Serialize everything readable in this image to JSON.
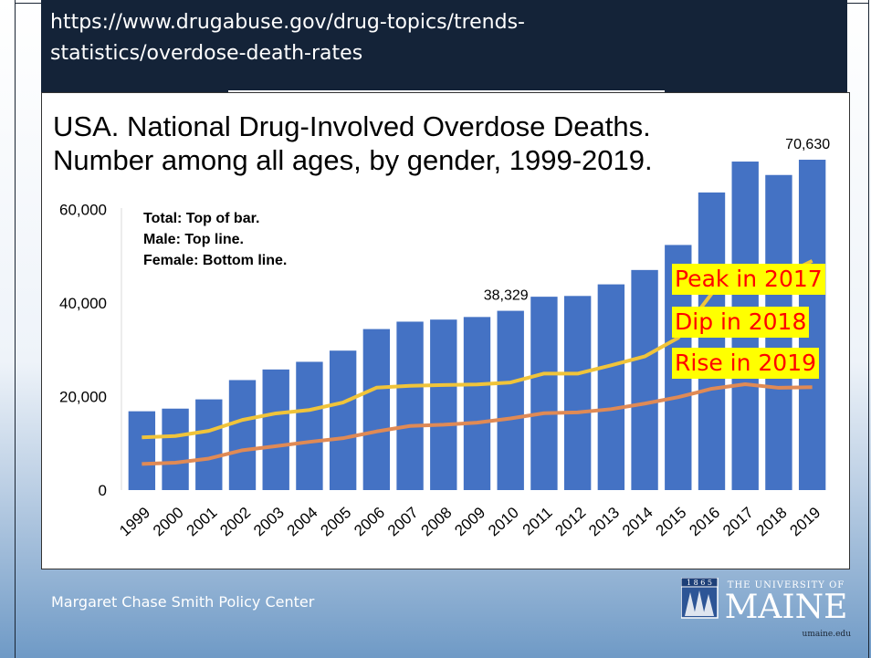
{
  "header": {
    "url_line1": "https://www.drugabuse.gov/drug-topics/trends-",
    "url_line2": "statistics/overdose-death-rates"
  },
  "chart_data": {
    "type": "bar",
    "title_line1": "USA. National Drug-Involved Overdose Deaths.",
    "title_line2": "Number among all ages, by gender, 1999-2019.",
    "categories": [
      "1999",
      "2000",
      "2001",
      "2002",
      "2003",
      "2004",
      "2005",
      "2006",
      "2007",
      "2008",
      "2009",
      "2010",
      "2011",
      "2012",
      "2013",
      "2014",
      "2015",
      "2016",
      "2017",
      "2018",
      "2019"
    ],
    "series": [
      {
        "name": "Total",
        "type": "bar",
        "color": "#4472c4",
        "values": [
          16849,
          17415,
          19394,
          23518,
          25785,
          27424,
          29813,
          34425,
          36010,
          36450,
          37004,
          38329,
          41340,
          41502,
          43982,
          47055,
          52404,
          63632,
          70237,
          67367,
          70630
        ]
      },
      {
        "name": "Male",
        "type": "line",
        "color": "#f0c43a",
        "values": [
          11258,
          11563,
          12658,
          14997,
          16399,
          17120,
          18724,
          21893,
          22298,
          22468,
          22593,
          23006,
          24906,
          24894,
          26676,
          28571,
          32544,
          42000,
          47600,
          45500,
          49000
        ]
      },
      {
        "name": "Female",
        "type": "line",
        "color": "#e08a55",
        "values": [
          5591,
          5852,
          6736,
          8521,
          9386,
          10304,
          11089,
          12532,
          13712,
          13982,
          14411,
          15323,
          16434,
          16608,
          17306,
          18484,
          19860,
          21662,
          22637,
          21867,
          22000
        ]
      }
    ],
    "y_ticks": [
      "60,000",
      "40,000",
      "20,000",
      "0"
    ],
    "ylim": [
      0,
      72000
    ],
    "data_labels": {
      "2010": "38,329",
      "2019": "70,630"
    },
    "notes": [
      "Total: Top of bar.",
      "Male: Top line.",
      "Female: Bottom line."
    ],
    "annotations": [
      "Peak in 2017",
      "Dip in 2018",
      "Rise in 2019"
    ]
  },
  "footer": {
    "org": "Margaret Chase Smith Policy Center",
    "logo_year": "1 8 6 5",
    "logo_top": "THE UNIVERSITY OF",
    "logo_name": "MAINE",
    "logo_url": "umaine.edu"
  },
  "colors": {
    "header_bg": "#142338",
    "bar": "#4472c4",
    "annotation_text": "#ff0000",
    "annotation_bg": "#ffff00"
  }
}
